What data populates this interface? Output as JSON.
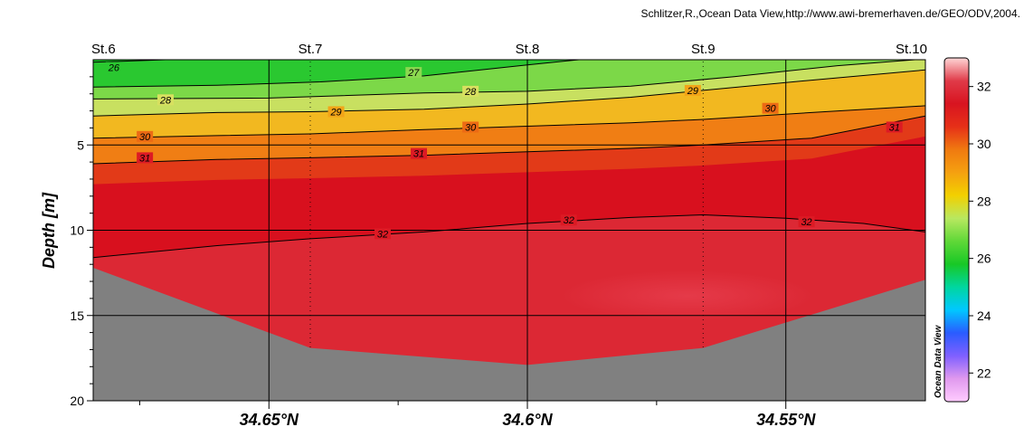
{
  "credit": "Schlitzer,R.,Ocean Data View,http://www.awi-bremerhaven.de/GEO/ODV,2004.",
  "brand": "Ocean Data View",
  "chart_data": {
    "type": "section",
    "ylabel": "Depth [m]",
    "y_range": [
      0,
      20
    ],
    "y_inverted": true,
    "y_ticks": [
      "5",
      "10",
      "15",
      "20"
    ],
    "x_range": [
      34.684,
      34.523
    ],
    "x_ticks": [
      {
        "value": 34.65,
        "label": "34.65°N"
      },
      {
        "value": 34.6,
        "label": "34.6°N"
      },
      {
        "value": 34.55,
        "label": "34.55°N"
      }
    ],
    "stations": [
      {
        "name": "St.6",
        "lat": 34.684,
        "bottom_depth": 12.2
      },
      {
        "name": "St.7",
        "lat": 34.642,
        "bottom_depth": 16.9
      },
      {
        "name": "St.8",
        "lat": 34.6,
        "bottom_depth": 17.9
      },
      {
        "name": "St.9",
        "lat": 34.566,
        "bottom_depth": 16.9
      },
      {
        "name": "St.10",
        "lat": 34.523,
        "bottom_depth": 12.9
      }
    ],
    "contours": [
      {
        "level": 26,
        "points": [
          [
            34.684,
            0.15
          ],
          [
            34.67,
            0.0
          ]
        ],
        "labels": [
          [
            34.68,
            0.45
          ]
        ]
      },
      {
        "level": 27,
        "points": [
          [
            34.684,
            1.6
          ],
          [
            34.66,
            1.5
          ],
          [
            34.64,
            1.3
          ],
          [
            34.62,
            0.95
          ],
          [
            34.6,
            0.3
          ],
          [
            34.59,
            0.0
          ]
        ],
        "labels": [
          [
            34.622,
            0.75
          ]
        ]
      },
      {
        "level": 28,
        "points": [
          [
            34.684,
            2.3
          ],
          [
            34.65,
            2.25
          ],
          [
            34.62,
            1.95
          ],
          [
            34.6,
            1.85
          ],
          [
            34.58,
            1.55
          ],
          [
            34.56,
            1.0
          ],
          [
            34.54,
            0.35
          ],
          [
            34.525,
            0.0
          ]
        ],
        "labels": [
          [
            34.67,
            2.35
          ],
          [
            34.611,
            1.85
          ]
        ]
      },
      {
        "level": 29,
        "points": [
          [
            34.684,
            3.3
          ],
          [
            34.66,
            3.1
          ],
          [
            34.642,
            3.05
          ],
          [
            34.62,
            2.9
          ],
          [
            34.6,
            2.6
          ],
          [
            34.58,
            2.2
          ],
          [
            34.566,
            1.8
          ],
          [
            34.545,
            1.2
          ],
          [
            34.523,
            0.6
          ]
        ],
        "labels": [
          [
            34.637,
            3.05
          ],
          [
            34.568,
            1.8
          ]
        ]
      },
      {
        "level": 30,
        "points": [
          [
            34.684,
            4.6
          ],
          [
            34.66,
            4.45
          ],
          [
            34.642,
            4.35
          ],
          [
            34.62,
            4.1
          ],
          [
            34.6,
            3.9
          ],
          [
            34.58,
            3.7
          ],
          [
            34.566,
            3.5
          ],
          [
            34.545,
            3.1
          ],
          [
            34.523,
            2.7
          ]
        ],
        "labels": [
          [
            34.674,
            4.5
          ],
          [
            34.611,
            3.95
          ],
          [
            34.553,
            2.85
          ]
        ]
      },
      {
        "level": 31,
        "points": [
          [
            34.684,
            6.1
          ],
          [
            34.66,
            5.85
          ],
          [
            34.642,
            5.75
          ],
          [
            34.62,
            5.6
          ],
          [
            34.6,
            5.4
          ],
          [
            34.58,
            5.2
          ],
          [
            34.566,
            5.0
          ],
          [
            34.545,
            4.6
          ],
          [
            34.523,
            3.3
          ]
        ],
        "labels": [
          [
            34.674,
            5.75
          ],
          [
            34.621,
            5.5
          ],
          [
            34.529,
            3.95
          ]
        ]
      },
      {
        "level": 32,
        "points": [
          [
            34.684,
            11.6
          ],
          [
            34.66,
            10.9
          ],
          [
            34.642,
            10.5
          ],
          [
            34.62,
            10.1
          ],
          [
            34.6,
            9.6
          ],
          [
            34.58,
            9.25
          ],
          [
            34.566,
            9.1
          ],
          [
            34.55,
            9.3
          ],
          [
            34.535,
            9.6
          ],
          [
            34.523,
            10.1
          ]
        ],
        "labels": [
          [
            34.628,
            10.2
          ],
          [
            34.592,
            9.4
          ],
          [
            34.546,
            9.5
          ]
        ]
      }
    ],
    "colorbar": {
      "min": 21,
      "max": 33,
      "ticks": [
        "22",
        "24",
        "26",
        "28",
        "30",
        "32"
      ],
      "colors": [
        "#ffccff",
        "#e099ee",
        "#8060ff",
        "#2a5cff",
        "#00c8ff",
        "#00d6a0",
        "#18c826",
        "#60d838",
        "#b8e860",
        "#f2d000",
        "#f5a010",
        "#f07a10",
        "#e63018",
        "#d81420",
        "#e03a48",
        "#ffd6d6"
      ],
      "label": ""
    }
  }
}
